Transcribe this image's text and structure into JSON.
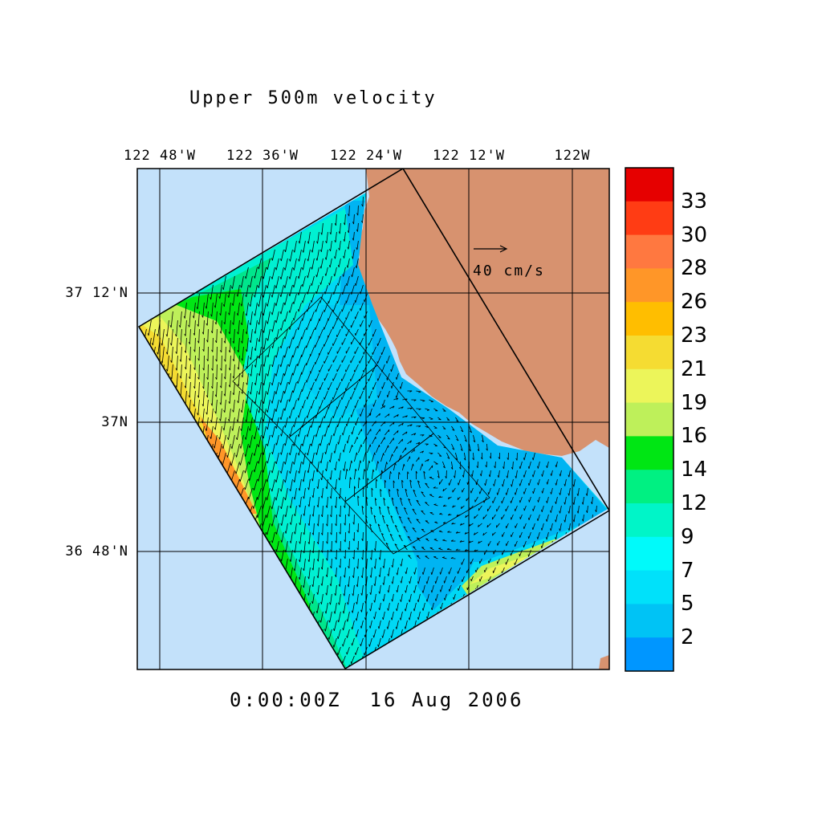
{
  "title": "Upper 500m velocity",
  "timestamp": "0:00:00Z  16 Aug 2006",
  "axes": {
    "lon_labels": [
      "122 48'W",
      "122 36'W",
      "122 24'W",
      "122 12'W",
      "122W"
    ],
    "lat_labels": [
      "37 12'N",
      "37N",
      "36 48'N"
    ]
  },
  "reference_vector": {
    "label": "40 cm/s",
    "speed_cm_s": 40
  },
  "colorbar": {
    "labels": [
      "33",
      "30",
      "28",
      "26",
      "23",
      "21",
      "19",
      "16",
      "14",
      "12",
      "9",
      "7",
      "5",
      "2"
    ],
    "colors": [
      "#e60000",
      "#ff3c14",
      "#ff7840",
      "#ff9628",
      "#ffbe00",
      "#f5dc32",
      "#ecf55a",
      "#bef05a",
      "#00e614",
      "#00f082",
      "#00f5c8",
      "#00fafa",
      "#00e1fa",
      "#00c3f5",
      "#0096ff"
    ]
  },
  "colors": {
    "ocean": "#c3e1fa",
    "land": "#d7926f",
    "vector": "#000000"
  },
  "chart_data": {
    "type": "heatmap",
    "title": "Upper 500m velocity",
    "subtitle": "0:00:00Z  16 Aug 2006",
    "x_ticks": [
      "122 48'W",
      "122 36'W",
      "122 24'W",
      "122 12'W",
      "122W"
    ],
    "y_ticks": [
      "37 12'N",
      "37N",
      "36 48'N"
    ],
    "colorbar_ticks": [
      2,
      5,
      7,
      9,
      12,
      14,
      16,
      19,
      21,
      23,
      26,
      28,
      30,
      33
    ],
    "reference_vector": "40 cm/s",
    "grid": true
  }
}
